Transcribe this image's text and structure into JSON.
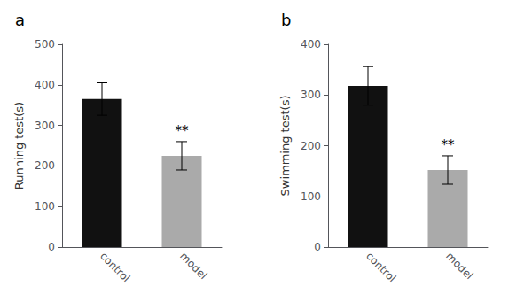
{
  "chart_data": [
    {
      "type": "bar",
      "title": "a",
      "categories": [
        "control",
        "model"
      ],
      "values": [
        365,
        225
      ],
      "errors": [
        40,
        35
      ],
      "colors": [
        "#111111",
        "#aaaaaa"
      ],
      "ylabel": "Running test(s)",
      "ylim": [
        0,
        500
      ],
      "yticks": [
        0,
        100,
        200,
        300,
        400,
        500
      ],
      "grid": false,
      "annotations": [
        {
          "text": "**",
          "category": "model"
        }
      ]
    },
    {
      "type": "bar",
      "title": "b",
      "categories": [
        "control",
        "model"
      ],
      "values": [
        318,
        152
      ],
      "errors": [
        38,
        28
      ],
      "colors": [
        "#111111",
        "#aaaaaa"
      ],
      "ylabel": "Swimming test(s)",
      "ylim": [
        0,
        400
      ],
      "yticks": [
        0,
        100,
        200,
        300,
        400
      ],
      "grid": false,
      "annotations": [
        {
          "text": "**",
          "category": "model"
        }
      ]
    }
  ]
}
